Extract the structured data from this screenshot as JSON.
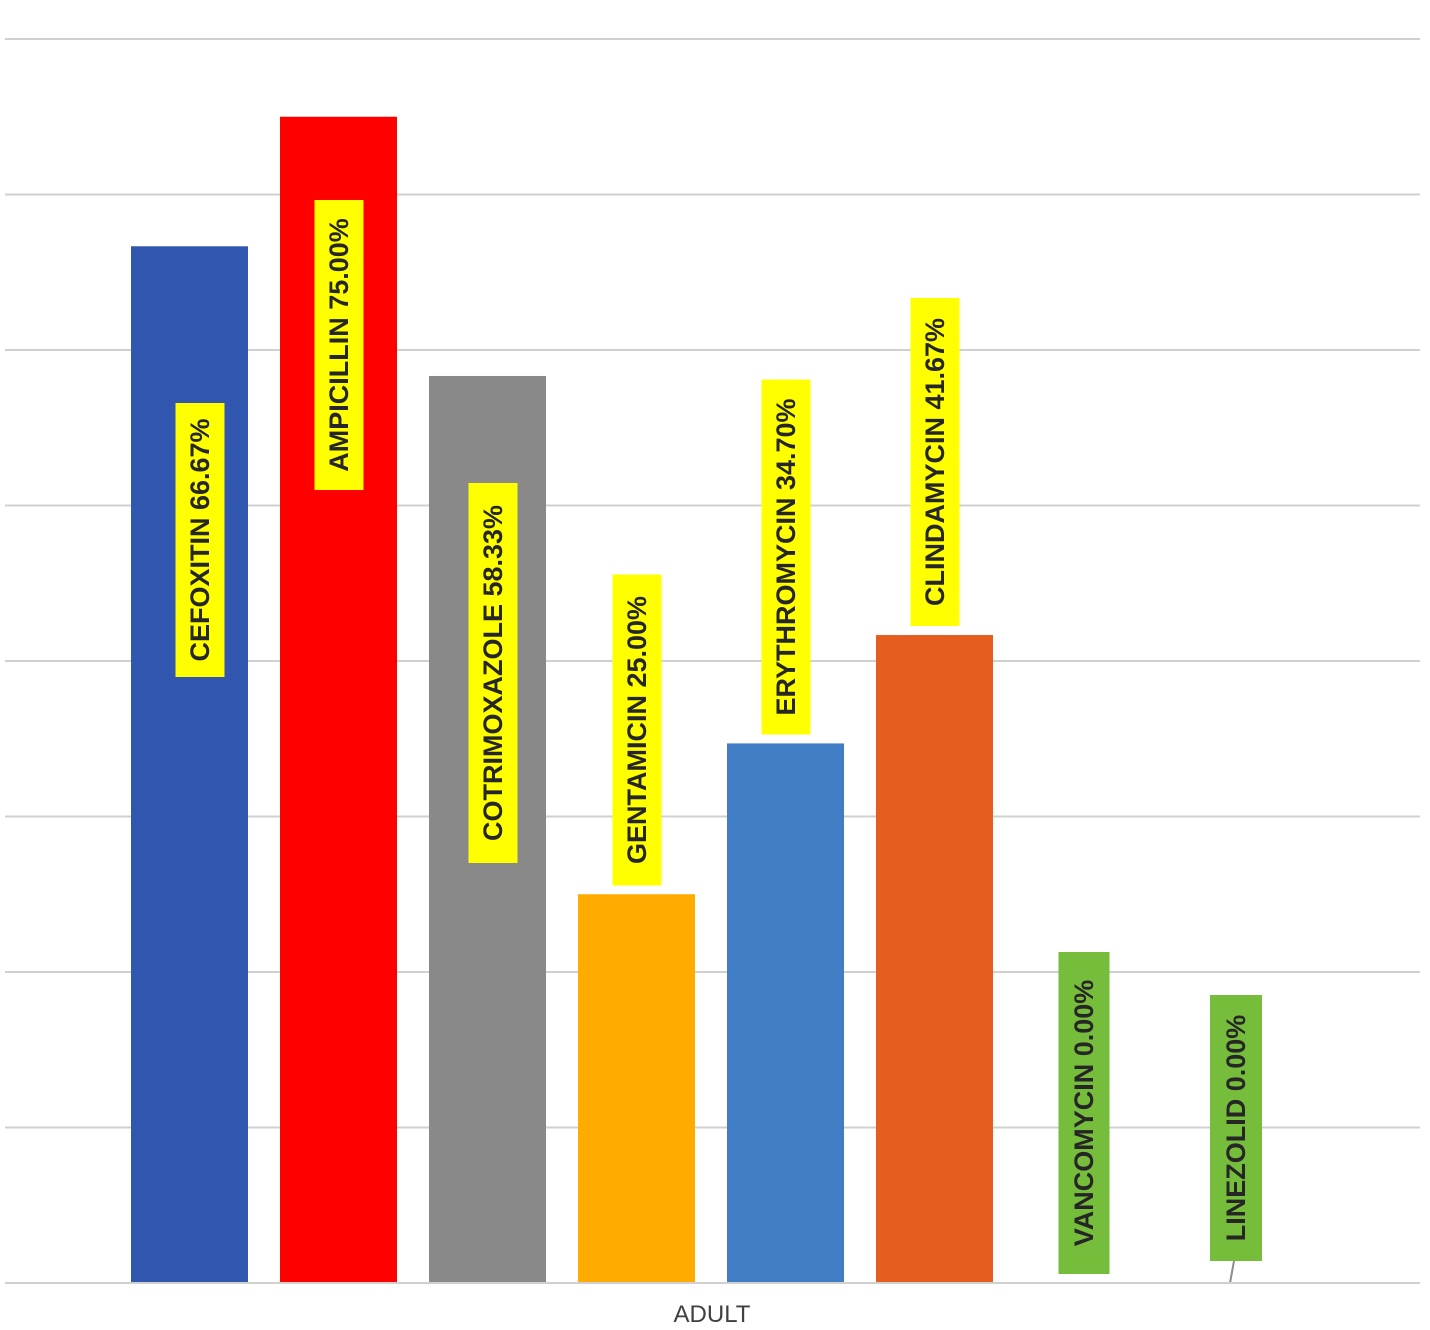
{
  "chart_data": {
    "type": "bar",
    "categories": [
      "ADULT"
    ],
    "xlabel": "",
    "ylabel": "",
    "ylim": [
      0,
      80
    ],
    "grid": true,
    "legend": "none",
    "label_background": "#ffff00",
    "leader_line_color": "#8c8c8c",
    "series": [
      {
        "name": "CEFOXITIN",
        "values": [
          66.67
        ],
        "color": "#3156b0",
        "label": "CEFOXITIN 66.67%"
      },
      {
        "name": "AMPICILLIN",
        "values": [
          75.0
        ],
        "color": "#ff0000",
        "label": "AMPICILLIN 75.00%"
      },
      {
        "name": "COTRIMOXAZOLE",
        "values": [
          58.33
        ],
        "color": "#898989",
        "label": "COTRIMOXAZOLE  58.33%"
      },
      {
        "name": "GENTAMICIN",
        "values": [
          25.0
        ],
        "color": "#ffab00",
        "label": "GENTAMICIN 25.00%"
      },
      {
        "name": "ERYTHROMYCIN",
        "values": [
          34.7
        ],
        "color": "#417dc5",
        "label": "ERYTHROMYCIN 34.70%"
      },
      {
        "name": "CLINDAMYCIN",
        "values": [
          41.67
        ],
        "color": "#e55e20",
        "label": "CLINDAMYCIN 41.67%"
      },
      {
        "name": "VANCOMYCIN",
        "values": [
          0.0
        ],
        "color": "#76bd3c",
        "label": "VANCOMYCIN 0.00%"
      },
      {
        "name": "LINEZOLID",
        "values": [
          0.0
        ],
        "color": "#76bd3c",
        "label": "LINEZOLID 0.00%"
      }
    ]
  }
}
